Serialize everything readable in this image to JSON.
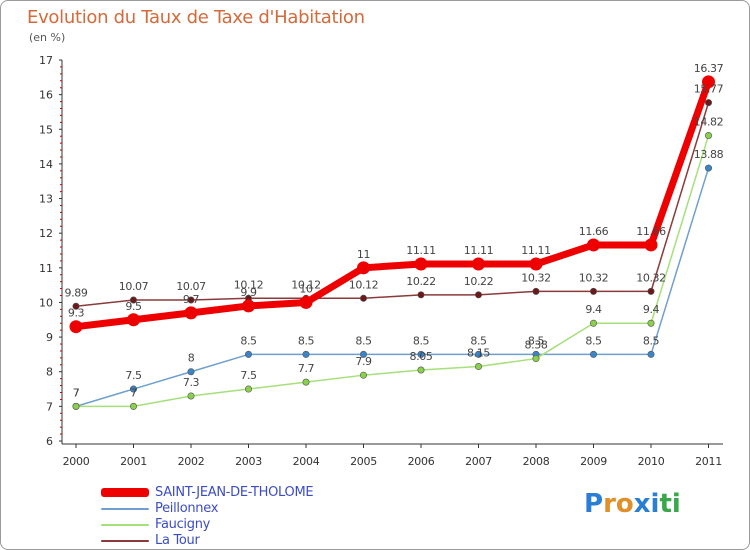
{
  "title": "Evolution du Taux de Taxe d'Habitation",
  "subtitle": "(en %)",
  "logo": {
    "letters": [
      "P",
      "r",
      "o",
      "x",
      "i",
      "t",
      "i"
    ],
    "colors": [
      "#2a7fd4",
      "#e0902a",
      "#e0902a",
      "#2a7fd4",
      "#2a7fd4",
      "#3aa84a",
      "#3aa84a"
    ]
  },
  "chart_data": {
    "type": "line",
    "title": "Evolution du Taux de Taxe d'Habitation",
    "ylabel": "(en %)",
    "xlabel": "",
    "x": [
      "2000",
      "2001",
      "2002",
      "2003",
      "2004",
      "2005",
      "2006",
      "2007",
      "2008",
      "2009",
      "2010",
      "2011"
    ],
    "ylim": [
      6,
      17
    ],
    "yticks": [
      "6",
      "7",
      "8",
      "9",
      "10",
      "11",
      "12",
      "13",
      "14",
      "15",
      "16",
      "17"
    ],
    "grid": false,
    "legend_position": "bottom-left",
    "series": [
      {
        "name": "SAINT-JEAN-DE-THOLOME",
        "color": "#ee0000",
        "marker_color": "#ee0000",
        "emphasis": "heavy",
        "values": [
          9.3,
          9.5,
          9.7,
          9.9,
          10,
          11,
          11.11,
          11.11,
          11.11,
          11.66,
          11.66,
          16.37
        ],
        "labels": [
          "9.3",
          "9.5",
          "9.7",
          "9.9",
          "10",
          "11",
          "11.11",
          "11.11",
          "11.11",
          "11.66",
          "11.66",
          "16.37"
        ]
      },
      {
        "name": "Peillonnex",
        "color": "#6f9fcf",
        "marker_color": "#3a84c8",
        "emphasis": "thin",
        "values": [
          7,
          7.5,
          8,
          8.5,
          8.5,
          8.5,
          8.5,
          8.5,
          8.5,
          8.5,
          8.5,
          13.88
        ],
        "labels": [
          "7",
          "7.5",
          "8",
          "8.5",
          "8.5",
          "8.5",
          "8.5",
          "8.5",
          "8.5",
          "8.5",
          "8.5",
          "13.88"
        ]
      },
      {
        "name": "Faucigny",
        "color": "#a6e07a",
        "marker_color": "#8ad04a",
        "emphasis": "thin",
        "values": [
          7,
          7,
          7.3,
          7.5,
          7.7,
          7.9,
          8.05,
          8.15,
          8.38,
          9.4,
          9.4,
          14.82
        ],
        "labels": [
          "7",
          "7",
          "7.3",
          "7.5",
          "7.7",
          "7.9",
          "8.05",
          "8.15",
          "8.38",
          "9.4",
          "9.4",
          "14.82"
        ]
      },
      {
        "name": "La Tour",
        "color": "#8a3a3a",
        "marker_color": "#6a1a1a",
        "emphasis": "thin",
        "values": [
          9.89,
          10.07,
          10.07,
          10.12,
          10.12,
          10.12,
          10.22,
          10.22,
          10.32,
          10.32,
          10.32,
          15.77
        ],
        "labels": [
          "9.89",
          "10.07",
          "10.07",
          "10.12",
          "10.12",
          "10.12",
          "10.22",
          "10.22",
          "10.32",
          "10.32",
          "10.32",
          "15.77"
        ]
      }
    ]
  }
}
